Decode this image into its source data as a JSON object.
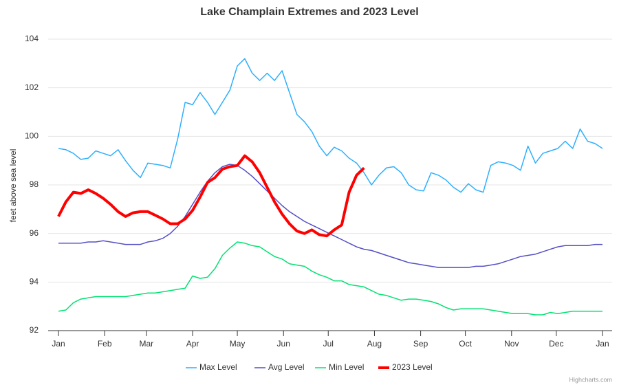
{
  "chart_data": {
    "type": "line",
    "title": "Lake Champlain Extremes and 2023 Level",
    "y_label": "feet above sea level",
    "credits": "Highcharts.com",
    "xlim": [
      0,
      365
    ],
    "xticks": [
      {
        "value": 0,
        "label": "Jan"
      },
      {
        "value": 31,
        "label": "Feb"
      },
      {
        "value": 59,
        "label": "Mar"
      },
      {
        "value": 90,
        "label": "Apr"
      },
      {
        "value": 120,
        "label": "May"
      },
      {
        "value": 151,
        "label": "Jun"
      },
      {
        "value": 181,
        "label": "Jul"
      },
      {
        "value": 212,
        "label": "Aug"
      },
      {
        "value": 243,
        "label": "Sep"
      },
      {
        "value": 273,
        "label": "Oct"
      },
      {
        "value": 304,
        "label": "Nov"
      },
      {
        "value": 334,
        "label": "Dec"
      },
      {
        "value": 365,
        "label": "Jan"
      }
    ],
    "ylim": [
      92,
      104
    ],
    "yticks": [
      92,
      94,
      96,
      98,
      100,
      102,
      104
    ],
    "grid": true,
    "legend": "bottom",
    "x": [
      0,
      5,
      10,
      15,
      20,
      25,
      30,
      35,
      40,
      45,
      50,
      55,
      60,
      65,
      70,
      75,
      80,
      85,
      90,
      95,
      100,
      105,
      110,
      115,
      120,
      125,
      130,
      135,
      140,
      145,
      150,
      155,
      160,
      165,
      170,
      175,
      180,
      185,
      190,
      195,
      200,
      205,
      210,
      215,
      220,
      225,
      230,
      235,
      240,
      245,
      250,
      255,
      260,
      265,
      270,
      275,
      280,
      285,
      290,
      295,
      300,
      305,
      310,
      315,
      320,
      325,
      330,
      335,
      340,
      345,
      350,
      355,
      360,
      365
    ],
    "series": [
      {
        "name": "Max Level",
        "color": "#2caffe",
        "width": 1.5,
        "values": [
          99.5,
          99.45,
          99.3,
          99.05,
          99.1,
          99.4,
          99.3,
          99.2,
          99.45,
          99.0,
          98.6,
          98.3,
          98.9,
          98.85,
          98.8,
          98.7,
          99.9,
          101.4,
          101.3,
          101.8,
          101.4,
          100.9,
          101.4,
          101.9,
          102.9,
          103.2,
          102.6,
          102.3,
          102.6,
          102.3,
          102.7,
          101.8,
          100.9,
          100.6,
          100.2,
          99.6,
          99.2,
          99.55,
          99.4,
          99.1,
          98.9,
          98.5,
          98.0,
          98.4,
          98.7,
          98.75,
          98.5,
          98.0,
          97.8,
          97.75,
          98.5,
          98.4,
          98.2,
          97.9,
          97.7,
          98.05,
          97.8,
          97.7,
          98.8,
          98.95,
          98.9,
          98.8,
          98.6,
          99.6,
          98.9,
          99.3,
          99.4,
          99.5,
          99.8,
          99.5,
          100.3,
          99.8,
          99.7,
          99.5
        ]
      },
      {
        "name": "Avg Level",
        "color": "#544fc5",
        "width": 1.5,
        "values": [
          95.6,
          95.6,
          95.6,
          95.6,
          95.65,
          95.65,
          95.7,
          95.65,
          95.6,
          95.55,
          95.55,
          95.55,
          95.65,
          95.7,
          95.8,
          96.0,
          96.3,
          96.7,
          97.2,
          97.7,
          98.15,
          98.5,
          98.75,
          98.85,
          98.8,
          98.6,
          98.35,
          98.05,
          97.75,
          97.45,
          97.15,
          96.9,
          96.7,
          96.5,
          96.35,
          96.2,
          96.05,
          95.9,
          95.75,
          95.6,
          95.45,
          95.35,
          95.3,
          95.2,
          95.1,
          95.0,
          94.9,
          94.8,
          94.75,
          94.7,
          94.65,
          94.6,
          94.6,
          94.6,
          94.6,
          94.6,
          94.65,
          94.65,
          94.7,
          94.75,
          94.85,
          94.95,
          95.05,
          95.1,
          95.15,
          95.25,
          95.35,
          95.45,
          95.5,
          95.5,
          95.5,
          95.5,
          95.55,
          95.55
        ]
      },
      {
        "name": "Min Level",
        "color": "#00e272",
        "width": 1.5,
        "values": [
          92.8,
          92.85,
          93.15,
          93.3,
          93.35,
          93.4,
          93.4,
          93.4,
          93.4,
          93.4,
          93.45,
          93.5,
          93.55,
          93.55,
          93.6,
          93.65,
          93.7,
          93.75,
          94.25,
          94.15,
          94.2,
          94.55,
          95.1,
          95.4,
          95.65,
          95.6,
          95.5,
          95.45,
          95.25,
          95.05,
          94.95,
          94.75,
          94.7,
          94.65,
          94.45,
          94.3,
          94.2,
          94.05,
          94.05,
          93.9,
          93.85,
          93.8,
          93.65,
          93.5,
          93.45,
          93.35,
          93.25,
          93.3,
          93.3,
          93.25,
          93.2,
          93.1,
          92.95,
          92.85,
          92.9,
          92.9,
          92.9,
          92.9,
          92.85,
          92.8,
          92.75,
          92.7,
          92.7,
          92.7,
          92.65,
          92.65,
          92.75,
          92.7,
          92.75,
          92.8,
          92.8,
          92.8,
          92.8,
          92.8
        ]
      },
      {
        "name": "2023 Level",
        "color": "#ff0000",
        "width": 4,
        "values": [
          96.7,
          97.3,
          97.7,
          97.65,
          97.8,
          97.65,
          97.45,
          97.2,
          96.9,
          96.7,
          96.85,
          96.9,
          96.9,
          96.75,
          96.6,
          96.4,
          96.4,
          96.6,
          96.95,
          97.5,
          98.1,
          98.3,
          98.65,
          98.75,
          98.8,
          99.2,
          98.95,
          98.5,
          97.9,
          97.3,
          96.8,
          96.4,
          96.1,
          96.0,
          96.15,
          95.95,
          95.9,
          96.15,
          96.35,
          97.7,
          98.4,
          98.7,
          null,
          null,
          null,
          null,
          null,
          null,
          null,
          null,
          null,
          null,
          null,
          null,
          null,
          null,
          null,
          null,
          null,
          null,
          null,
          null,
          null,
          null,
          null,
          null,
          null,
          null,
          null,
          null,
          null,
          null,
          null,
          null
        ]
      }
    ]
  }
}
